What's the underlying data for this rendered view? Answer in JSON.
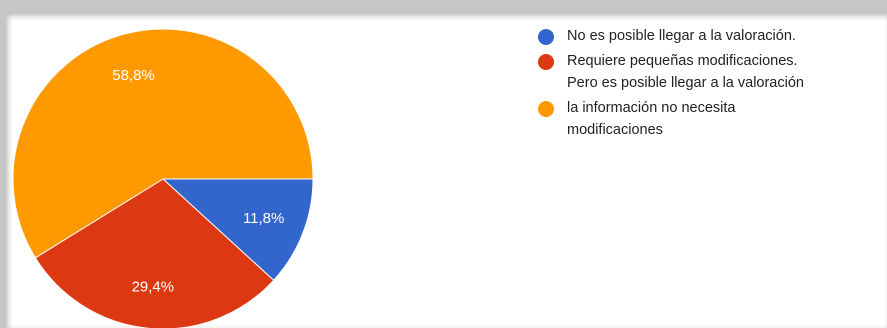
{
  "chart_data": {
    "type": "pie",
    "slices": [
      {
        "label": "No es posible llegar a la valoración.",
        "value": 11.8,
        "display": "11,8%",
        "color": "#3366cc"
      },
      {
        "label": "Requiere pequeñas modificaciones.",
        "label_line2": "Pero es posible llegar a la valoración",
        "value": 29.4,
        "display": "29,4%",
        "color": "#dc3912"
      },
      {
        "label": "la información no necesita",
        "label_line2": "modificaciones",
        "value": 58.8,
        "display": "58,8%",
        "color": "#ff9900"
      }
    ],
    "legend_position": "right"
  }
}
